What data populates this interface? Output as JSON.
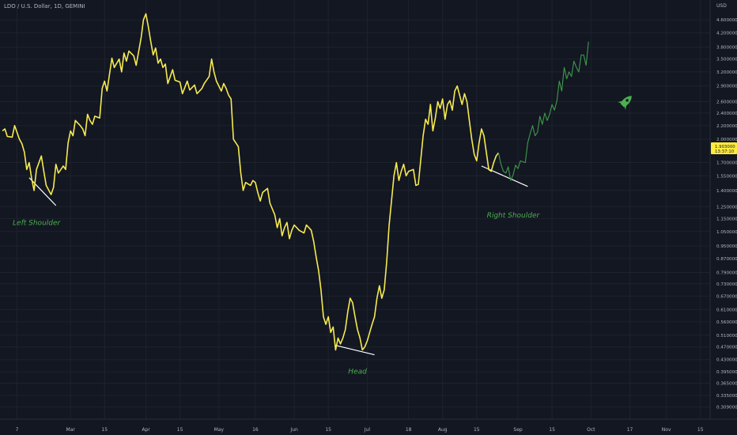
{
  "header": {
    "symbol_label": "LDO / U.S. Dollar, 1D, GEMINI"
  },
  "price_axis": {
    "currency_label": "USD"
  },
  "price_badge": {
    "price": "1.903000",
    "countdown": "13:37:10"
  },
  "annotations": {
    "left_shoulder": "Left Shoulder",
    "head": "Head",
    "right_shoulder": "Right Shoulder"
  },
  "colors": {
    "background": "#131722",
    "grid": "#1e222d",
    "price_line": "#f6ea4f",
    "projection_line": "#3f9a4a",
    "label_green": "#4caf50",
    "neckline": "#ffffff",
    "axis_text": "#b2b5be",
    "badge": "#ffeb3b"
  },
  "icons": {
    "projection_marker": "rocket-icon"
  },
  "chart_data": {
    "type": "line",
    "title": "LDO / U.S. Dollar, 1D, GEMINI",
    "scale": "log",
    "ylim": [
      0.3,
      5.0
    ],
    "y_ticks": [
      "4.600000",
      "4.200000",
      "3.800000",
      "3.500000",
      "3.200000",
      "2.900000",
      "2.600000",
      "2.400000",
      "2.200000",
      "2.000000",
      "1.700000",
      "1.550000",
      "1.400000",
      "1.250000",
      "1.150000",
      "1.050000",
      "0.950000",
      "0.870000",
      "0.790000",
      "0.730000",
      "0.670000",
      "0.610000",
      "0.560000",
      "0.510000",
      "0.470000",
      "0.430000",
      "0.395000",
      "0.365000",
      "0.335000",
      "0.309000"
    ],
    "x_ticks": [
      "7",
      "Mar",
      "15",
      "Apr",
      "15",
      "May",
      "16",
      "Jun",
      "15",
      "Jul",
      "18",
      "Aug",
      "15",
      "Sep",
      "15",
      "Oct",
      "17",
      "Nov",
      "15"
    ],
    "x_range": [
      "2022-01-31",
      "2022-11-19"
    ],
    "grid": true,
    "series": [
      {
        "style": "solid",
        "points": [
          [
            "2022-02-01",
            2.12
          ],
          [
            "2022-02-02",
            2.15
          ],
          [
            "2022-02-03",
            2.04
          ],
          [
            "2022-02-05",
            2.03
          ],
          [
            "2022-02-06",
            2.2
          ],
          [
            "2022-02-08",
            2.0
          ],
          [
            "2022-02-09",
            1.94
          ],
          [
            "2022-02-10",
            1.83
          ],
          [
            "2022-02-11",
            1.62
          ],
          [
            "2022-02-12",
            1.7
          ],
          [
            "2022-02-13",
            1.52
          ],
          [
            "2022-02-14",
            1.4
          ],
          [
            "2022-02-15",
            1.62
          ],
          [
            "2022-02-17",
            1.78
          ],
          [
            "2022-02-18",
            1.6
          ],
          [
            "2022-02-19",
            1.45
          ],
          [
            "2022-02-21",
            1.36
          ],
          [
            "2022-02-22",
            1.43
          ],
          [
            "2022-02-23",
            1.68
          ],
          [
            "2022-02-24",
            1.58
          ],
          [
            "2022-02-26",
            1.66
          ],
          [
            "2022-02-27",
            1.62
          ],
          [
            "2022-02-28",
            1.95
          ],
          [
            "2022-03-01",
            2.12
          ],
          [
            "2022-03-02",
            2.05
          ],
          [
            "2022-03-03",
            2.28
          ],
          [
            "2022-03-05",
            2.2
          ],
          [
            "2022-03-06",
            2.15
          ],
          [
            "2022-03-07",
            2.05
          ],
          [
            "2022-03-08",
            2.38
          ],
          [
            "2022-03-09",
            2.28
          ],
          [
            "2022-03-10",
            2.22
          ],
          [
            "2022-03-11",
            2.35
          ],
          [
            "2022-03-13",
            2.32
          ],
          [
            "2022-03-14",
            2.85
          ],
          [
            "2022-03-15",
            3.0
          ],
          [
            "2022-03-16",
            2.8
          ],
          [
            "2022-03-18",
            3.52
          ],
          [
            "2022-03-19",
            3.3
          ],
          [
            "2022-03-21",
            3.5
          ],
          [
            "2022-03-22",
            3.2
          ],
          [
            "2022-03-23",
            3.65
          ],
          [
            "2022-03-24",
            3.45
          ],
          [
            "2022-03-25",
            3.7
          ],
          [
            "2022-03-27",
            3.58
          ],
          [
            "2022-03-28",
            3.35
          ],
          [
            "2022-03-30",
            4.05
          ],
          [
            "2022-03-31",
            4.6
          ],
          [
            "2022-04-01",
            4.8
          ],
          [
            "2022-04-02",
            4.38
          ],
          [
            "2022-04-03",
            3.95
          ],
          [
            "2022-04-04",
            3.6
          ],
          [
            "2022-04-05",
            3.78
          ],
          [
            "2022-04-06",
            3.4
          ],
          [
            "2022-04-07",
            3.5
          ],
          [
            "2022-04-08",
            3.3
          ],
          [
            "2022-04-09",
            3.38
          ],
          [
            "2022-04-10",
            2.95
          ],
          [
            "2022-04-11",
            3.1
          ],
          [
            "2022-04-12",
            3.25
          ],
          [
            "2022-04-13",
            3.02
          ],
          [
            "2022-04-14",
            3.0
          ],
          [
            "2022-04-15",
            2.98
          ],
          [
            "2022-04-16",
            2.75
          ],
          [
            "2022-04-18",
            3.0
          ],
          [
            "2022-04-19",
            2.82
          ],
          [
            "2022-04-21",
            2.92
          ],
          [
            "2022-04-22",
            2.75
          ],
          [
            "2022-04-24",
            2.85
          ],
          [
            "2022-04-25",
            2.95
          ],
          [
            "2022-04-27",
            3.1
          ],
          [
            "2022-04-28",
            3.5
          ],
          [
            "2022-04-29",
            3.2
          ],
          [
            "2022-04-30",
            3.0
          ],
          [
            "2022-05-02",
            2.8
          ],
          [
            "2022-05-03",
            2.95
          ],
          [
            "2022-05-04",
            2.85
          ],
          [
            "2022-05-05",
            2.72
          ],
          [
            "2022-05-06",
            2.65
          ],
          [
            "2022-05-07",
            2.0
          ],
          [
            "2022-05-09",
            1.9
          ],
          [
            "2022-05-10",
            1.58
          ],
          [
            "2022-05-11",
            1.4
          ],
          [
            "2022-05-12",
            1.48
          ],
          [
            "2022-05-14",
            1.45
          ],
          [
            "2022-05-15",
            1.5
          ],
          [
            "2022-05-16",
            1.48
          ],
          [
            "2022-05-17",
            1.38
          ],
          [
            "2022-05-18",
            1.3
          ],
          [
            "2022-05-19",
            1.38
          ],
          [
            "2022-05-21",
            1.42
          ],
          [
            "2022-05-22",
            1.28
          ],
          [
            "2022-05-24",
            1.18
          ],
          [
            "2022-05-25",
            1.08
          ],
          [
            "2022-05-26",
            1.15
          ],
          [
            "2022-05-27",
            1.02
          ],
          [
            "2022-05-28",
            1.08
          ],
          [
            "2022-05-29",
            1.12
          ],
          [
            "2022-05-30",
            1.0
          ],
          [
            "2022-05-31",
            1.06
          ],
          [
            "2022-06-01",
            1.1
          ],
          [
            "2022-06-02",
            1.08
          ],
          [
            "2022-06-03",
            1.06
          ],
          [
            "2022-06-05",
            1.04
          ],
          [
            "2022-06-06",
            1.1
          ],
          [
            "2022-06-07",
            1.08
          ],
          [
            "2022-06-08",
            1.06
          ],
          [
            "2022-06-09",
            0.98
          ],
          [
            "2022-06-10",
            0.88
          ],
          [
            "2022-06-11",
            0.8
          ],
          [
            "2022-06-12",
            0.7
          ],
          [
            "2022-06-13",
            0.58
          ],
          [
            "2022-06-14",
            0.55
          ],
          [
            "2022-06-15",
            0.58
          ],
          [
            "2022-06-16",
            0.52
          ],
          [
            "2022-06-17",
            0.54
          ],
          [
            "2022-06-18",
            0.46
          ],
          [
            "2022-06-19",
            0.5
          ],
          [
            "2022-06-20",
            0.48
          ],
          [
            "2022-06-21",
            0.5
          ],
          [
            "2022-06-22",
            0.53
          ],
          [
            "2022-06-23",
            0.6
          ],
          [
            "2022-06-24",
            0.66
          ],
          [
            "2022-06-25",
            0.64
          ],
          [
            "2022-06-26",
            0.58
          ],
          [
            "2022-06-27",
            0.53
          ],
          [
            "2022-06-28",
            0.5
          ],
          [
            "2022-06-29",
            0.46
          ],
          [
            "2022-06-30",
            0.47
          ],
          [
            "2022-07-01",
            0.49
          ],
          [
            "2022-07-02",
            0.52
          ],
          [
            "2022-07-03",
            0.55
          ],
          [
            "2022-07-04",
            0.58
          ],
          [
            "2022-07-05",
            0.66
          ],
          [
            "2022-07-06",
            0.72
          ],
          [
            "2022-07-07",
            0.66
          ],
          [
            "2022-07-08",
            0.7
          ],
          [
            "2022-07-09",
            0.85
          ],
          [
            "2022-07-10",
            1.1
          ],
          [
            "2022-07-12",
            1.55
          ],
          [
            "2022-07-13",
            1.7
          ],
          [
            "2022-07-14",
            1.5
          ],
          [
            "2022-07-15",
            1.6
          ],
          [
            "2022-07-16",
            1.68
          ],
          [
            "2022-07-17",
            1.55
          ],
          [
            "2022-07-18",
            1.6
          ],
          [
            "2022-07-20",
            1.62
          ],
          [
            "2022-07-21",
            1.45
          ],
          [
            "2022-07-22",
            1.46
          ],
          [
            "2022-07-24",
            2.05
          ],
          [
            "2022-07-25",
            2.3
          ],
          [
            "2022-07-26",
            2.22
          ],
          [
            "2022-07-27",
            2.55
          ],
          [
            "2022-07-28",
            2.12
          ],
          [
            "2022-07-29",
            2.32
          ],
          [
            "2022-07-30",
            2.6
          ],
          [
            "2022-07-31",
            2.48
          ],
          [
            "2022-08-01",
            2.65
          ],
          [
            "2022-08-02",
            2.3
          ],
          [
            "2022-08-03",
            2.55
          ],
          [
            "2022-08-04",
            2.62
          ],
          [
            "2022-08-05",
            2.45
          ],
          [
            "2022-08-06",
            2.8
          ],
          [
            "2022-08-07",
            2.9
          ],
          [
            "2022-08-09",
            2.55
          ],
          [
            "2022-08-10",
            2.75
          ],
          [
            "2022-08-11",
            2.6
          ],
          [
            "2022-08-12",
            2.28
          ],
          [
            "2022-08-13",
            2.0
          ],
          [
            "2022-08-14",
            1.8
          ],
          [
            "2022-08-15",
            1.72
          ],
          [
            "2022-08-16",
            1.95
          ],
          [
            "2022-08-17",
            2.15
          ],
          [
            "2022-08-18",
            2.05
          ],
          [
            "2022-08-19",
            1.82
          ],
          [
            "2022-08-20",
            1.62
          ],
          [
            "2022-08-21",
            1.6
          ],
          [
            "2022-08-22",
            1.7
          ],
          [
            "2022-08-23",
            1.78
          ],
          [
            "2022-08-24",
            1.82
          ]
        ]
      },
      {
        "style": "solid",
        "points": [
          [
            "2022-08-24",
            1.82
          ],
          [
            "2022-08-25",
            1.68
          ],
          [
            "2022-08-26",
            1.6
          ],
          [
            "2022-08-27",
            1.58
          ],
          [
            "2022-08-28",
            1.65
          ],
          [
            "2022-08-29",
            1.5
          ],
          [
            "2022-08-30",
            1.56
          ],
          [
            "2022-08-31",
            1.67
          ],
          [
            "2022-09-01",
            1.63
          ],
          [
            "2022-09-02",
            1.72
          ],
          [
            "2022-09-04",
            1.7
          ],
          [
            "2022-09-05",
            1.95
          ],
          [
            "2022-09-06",
            2.08
          ],
          [
            "2022-09-07",
            2.2
          ],
          [
            "2022-09-08",
            2.05
          ],
          [
            "2022-09-09",
            2.1
          ],
          [
            "2022-09-10",
            2.35
          ],
          [
            "2022-09-11",
            2.22
          ],
          [
            "2022-09-12",
            2.4
          ],
          [
            "2022-09-13",
            2.28
          ],
          [
            "2022-09-14",
            2.38
          ],
          [
            "2022-09-15",
            2.55
          ],
          [
            "2022-09-16",
            2.45
          ],
          [
            "2022-09-17",
            2.62
          ],
          [
            "2022-09-18",
            3.0
          ],
          [
            "2022-09-19",
            2.8
          ],
          [
            "2022-09-20",
            3.3
          ],
          [
            "2022-09-21",
            3.05
          ],
          [
            "2022-09-22",
            3.2
          ],
          [
            "2022-09-23",
            3.1
          ],
          [
            "2022-09-24",
            3.45
          ],
          [
            "2022-09-25",
            3.3
          ],
          [
            "2022-09-26",
            3.2
          ],
          [
            "2022-09-27",
            3.6
          ],
          [
            "2022-09-28",
            3.6
          ],
          [
            "2022-09-29",
            3.35
          ],
          [
            "2022-09-30",
            3.95
          ]
        ]
      }
    ],
    "trendlines": [
      {
        "from": [
          "2022-02-12",
          1.53
        ],
        "to": [
          "2022-02-23",
          1.26
        ]
      },
      {
        "from": [
          "2022-06-18",
          0.475
        ],
        "to": [
          "2022-07-04",
          0.445
        ]
      },
      {
        "from": [
          "2022-08-17",
          1.66
        ],
        "to": [
          "2022-09-05",
          1.44
        ]
      }
    ],
    "annotations": [
      {
        "text": "Left Shoulder",
        "at": [
          "2022-02-15",
          1.1
        ]
      },
      {
        "text": "Head",
        "at": [
          "2022-06-27",
          0.39
        ]
      },
      {
        "text": "Right Shoulder",
        "at": [
          "2022-08-30",
          1.16
        ]
      }
    ],
    "last_price": 1.903
  }
}
